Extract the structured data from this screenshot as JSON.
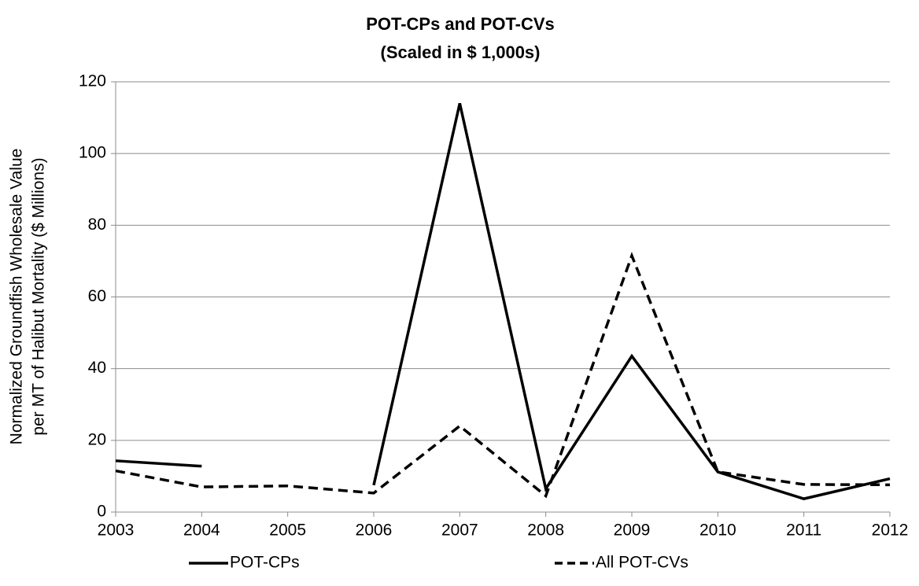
{
  "chart_data": {
    "type": "line",
    "title": [
      "POT-CPs and POT-CVs",
      "(Scaled in $ 1,000s)"
    ],
    "y_label": [
      "Normalized Groundfish Wholesale Value",
      "per MT of Halibut Mortality ($ Millions)"
    ],
    "x": [
      2003,
      2004,
      2005,
      2006,
      2007,
      2008,
      2009,
      2010,
      2011,
      2012
    ],
    "xlim": [
      2003,
      2012
    ],
    "xticks": [
      2003,
      2004,
      2005,
      2006,
      2007,
      2008,
      2009,
      2010,
      2011,
      2012
    ],
    "ylim": [
      0,
      120
    ],
    "yticks": [
      0,
      20,
      40,
      60,
      80,
      100,
      120
    ],
    "grid": true,
    "legend": "bottom",
    "series": [
      {
        "name": "POT-CPs",
        "color": "#000000",
        "dash": "solid",
        "values": [
          14.3,
          12.8,
          null,
          7.5,
          114,
          6.5,
          43.5,
          11.2,
          3.7,
          9.3
        ]
      },
      {
        "name": "All POT-CVs",
        "color": "#000000",
        "dash": "dashed",
        "values": [
          11.5,
          7,
          7.3,
          5.3,
          24,
          4.5,
          71.5,
          11.2,
          7.7,
          7.6
        ]
      }
    ]
  }
}
